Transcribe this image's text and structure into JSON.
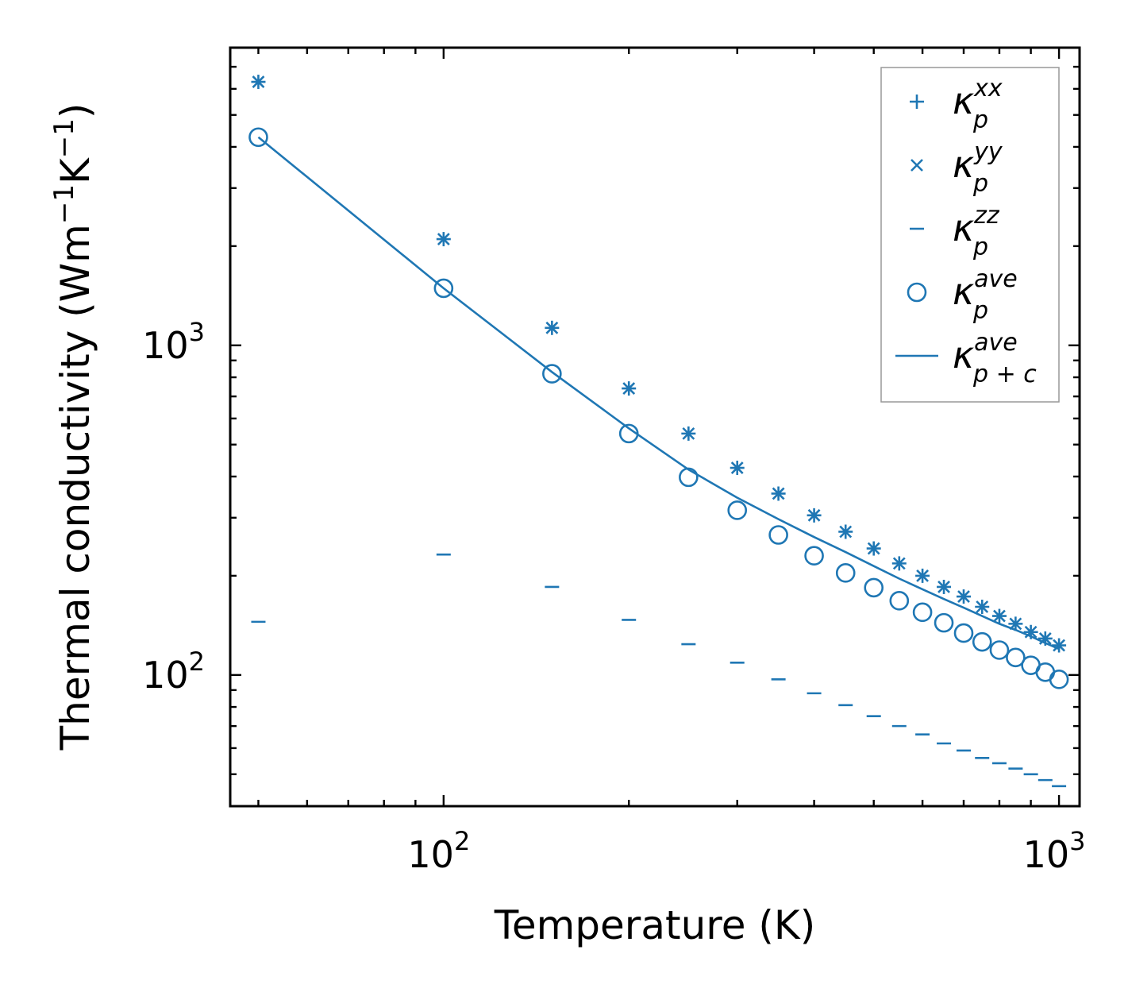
{
  "chart_data": {
    "type": "scatter",
    "xscale": "log",
    "yscale": "log",
    "xlabel": "Temperature (K)",
    "ylabel_main": "Thermal conductivity (Wm",
    "ylabel_exp1": "−1",
    "ylabel_mid": "K",
    "ylabel_exp2": "−1",
    "ylabel_end": ")",
    "xlim": [
      45,
      1080
    ],
    "ylim": [
      40,
      8000
    ],
    "xticks": [
      {
        "value": 100,
        "base": "10",
        "exp": "2"
      },
      {
        "value": 1000,
        "base": "10",
        "exp": "3"
      }
    ],
    "yticks": [
      {
        "value": 100,
        "base": "10",
        "exp": "2"
      },
      {
        "value": 1000,
        "base": "10",
        "exp": "3"
      }
    ],
    "color": "#1f77b4",
    "legend_position": "upper right",
    "x": [
      50,
      100,
      150,
      200,
      250,
      300,
      350,
      400,
      450,
      500,
      550,
      600,
      650,
      700,
      750,
      800,
      850,
      900,
      950,
      1000
    ],
    "series": [
      {
        "name": "kxx",
        "legend_base": "κ",
        "legend_sub": "p",
        "legend_sup": "xx",
        "marker": "plus",
        "values": [
          6300,
          2100,
          1130,
          740,
          540,
          425,
          355,
          305,
          272,
          242,
          218,
          200,
          185,
          173,
          161,
          151,
          143,
          135,
          129,
          123
        ]
      },
      {
        "name": "kyy",
        "legend_base": "κ",
        "legend_sub": "p",
        "legend_sup": "yy",
        "marker": "x",
        "values": [
          6300,
          2100,
          1130,
          740,
          540,
          425,
          355,
          305,
          272,
          242,
          218,
          200,
          185,
          173,
          161,
          151,
          143,
          135,
          129,
          123
        ]
      },
      {
        "name": "kzz",
        "legend_base": "κ",
        "legend_sub": "p",
        "legend_sup": "zz",
        "marker": "hline",
        "values": [
          145,
          232,
          185,
          147,
          124,
          109,
          97,
          88,
          81,
          75,
          70,
          66,
          62,
          59,
          56,
          54,
          52,
          50,
          48,
          46
        ]
      },
      {
        "name": "kave",
        "legend_base": "κ",
        "legend_sub": "p",
        "legend_sup": "ave",
        "marker": "circle",
        "values": [
          4280,
          1490,
          820,
          540,
          398,
          316,
          266,
          230,
          204,
          184,
          168,
          155,
          144,
          134,
          126,
          119,
          113,
          107,
          102,
          97
        ]
      },
      {
        "name": "kave_pc",
        "legend_base": "κ",
        "legend_sub": "p + c",
        "legend_sup": "ave",
        "marker": "line",
        "values": [
          4280,
          1490,
          830,
          560,
          420,
          345,
          297,
          262,
          236,
          214,
          196,
          182,
          170,
          160,
          151,
          143,
          137,
          131,
          125,
          120
        ]
      }
    ]
  }
}
